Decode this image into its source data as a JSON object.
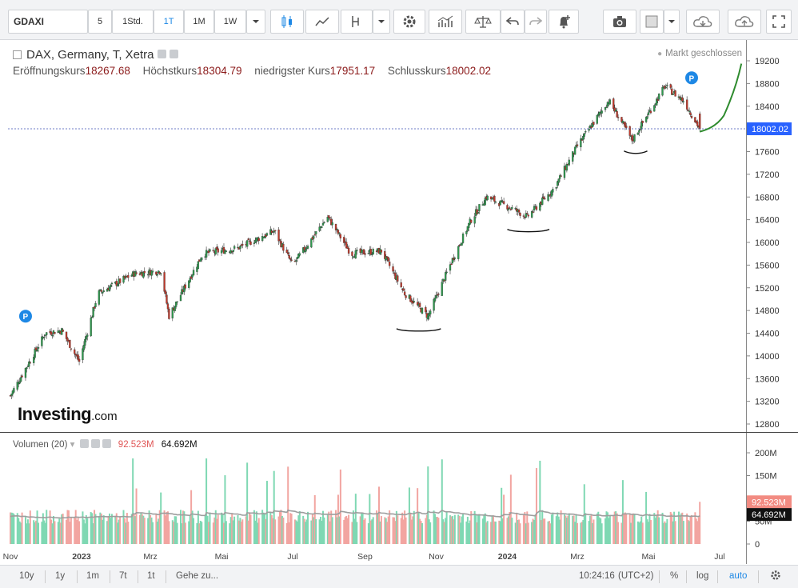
{
  "toolbar": {
    "symbol": "GDAXI",
    "intervals": [
      "5",
      "1Std.",
      "1T",
      "1M",
      "1W"
    ],
    "active_interval": "1T"
  },
  "legend": {
    "title": "DAX, Germany, T, Xetra",
    "status": "Markt geschlossen",
    "open_label": "Eröffnungskurs",
    "open": "18267.68",
    "high_label": "Höchstkurs",
    "high": "18304.79",
    "low_label": "niedrigster Kurs",
    "low": "17951.17",
    "close_label": "Schlusskurs",
    "close": "18002.02"
  },
  "volume_legend": {
    "title": "Volumen (20)",
    "value": "92.523M",
    "ma_value": "64.692M"
  },
  "logo": {
    "main": "Investing",
    "suffix": ".com"
  },
  "bottom_bar": {
    "ranges": [
      "10y",
      "1y",
      "1m",
      "7t",
      "1t"
    ],
    "goto": "Gehe zu...",
    "time": "10:24:16",
    "tz": "(UTC+2)",
    "percent": "%",
    "log": "log",
    "auto": "auto"
  },
  "colors": {
    "up": "#2e9a4e",
    "down": "#c0392b",
    "vol_up": "#7fd8b3",
    "vol_down": "#f2a5a1",
    "ma": "#9e9e9e",
    "last_price_bg": "#2962ff",
    "projection": "#2e8b2e"
  },
  "chart_data": [
    {
      "type": "candlestick",
      "title": "DAX, Germany, T, Xetra",
      "y_axis_ticks": [
        12800,
        13200,
        13600,
        14000,
        14400,
        14800,
        15200,
        15600,
        16000,
        16400,
        16800,
        17200,
        17600,
        18000,
        18400,
        18800,
        19200
      ],
      "ylim": [
        12600,
        19450
      ],
      "last_price": "18002.02",
      "x_axis_labels": [
        "Nov",
        "2023",
        "Mrz",
        "Mai",
        "Jul",
        "Sep",
        "Nov",
        "2024",
        "Mrz",
        "Mai",
        "Jul"
      ],
      "approx_close_path": [
        {
          "date": "2022-11",
          "close": 13300
        },
        {
          "date": "2022-12-01",
          "close": 14400
        },
        {
          "date": "2022-12-15",
          "close": 14450
        },
        {
          "date": "2022-12-30",
          "close": 13900
        },
        {
          "date": "2023-01-15",
          "close": 15100
        },
        {
          "date": "2023-02-15",
          "close": 15450
        },
        {
          "date": "2023-03-10",
          "close": 15500
        },
        {
          "date": "2023-03-17",
          "close": 14700
        },
        {
          "date": "2023-04-15",
          "close": 15800
        },
        {
          "date": "2023-05-15",
          "close": 15900
        },
        {
          "date": "2023-06-15",
          "close": 16200
        },
        {
          "date": "2023-07-01",
          "close": 15600
        },
        {
          "date": "2023-07-31",
          "close": 16450
        },
        {
          "date": "2023-08-20",
          "close": 15800
        },
        {
          "date": "2023-09-15",
          "close": 15850
        },
        {
          "date": "2023-10-05",
          "close": 15100
        },
        {
          "date": "2023-10-25",
          "close": 14700
        },
        {
          "date": "2023-11-15",
          "close": 15700
        },
        {
          "date": "2023-12-01",
          "close": 16400
        },
        {
          "date": "2023-12-14",
          "close": 16800
        },
        {
          "date": "2024-01-05",
          "close": 16600
        },
        {
          "date": "2024-01-18",
          "close": 16450
        },
        {
          "date": "2024-02-10",
          "close": 16950
        },
        {
          "date": "2024-03-01",
          "close": 17700
        },
        {
          "date": "2024-03-28",
          "close": 18500
        },
        {
          "date": "2024-04-17",
          "close": 17800
        },
        {
          "date": "2024-05-15",
          "close": 18750
        },
        {
          "date": "2024-05-31",
          "close": 18500
        },
        {
          "date": "2024-06-14",
          "close": 18002
        }
      ],
      "annotations": [
        "support-line-oct-2023",
        "support-line-jan-2024",
        "support-line-apr-2024",
        "projection-curve"
      ],
      "markers": [
        "P",
        "P"
      ]
    },
    {
      "type": "bar",
      "title": "Volumen (20)",
      "y_axis_ticks": [
        "0",
        "50M",
        "100M",
        "150M",
        "200M"
      ],
      "ylim": [
        0,
        230
      ],
      "current_value": "92.523M",
      "moving_average": "64.692M"
    }
  ]
}
